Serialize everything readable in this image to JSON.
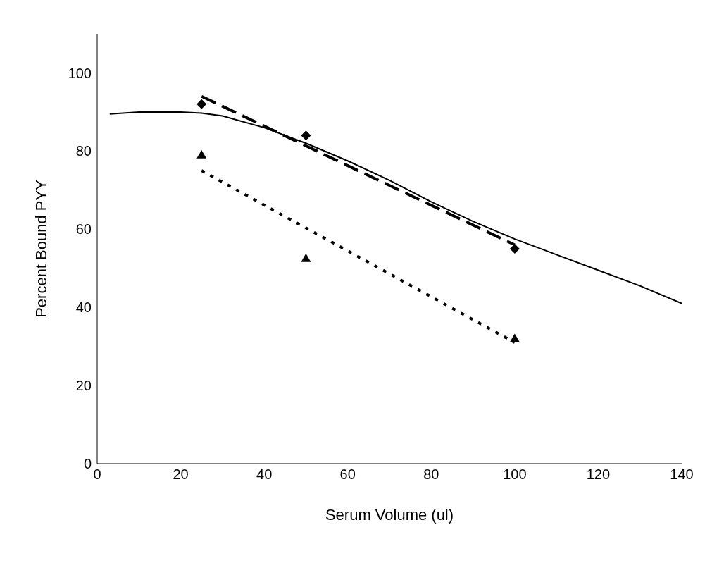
{
  "chart_data": {
    "type": "scatter",
    "xlabel": "Serum Volume (ul)",
    "ylabel": "Percent Bound PYY",
    "xlim": [
      0,
      140
    ],
    "xticks": [
      0,
      20,
      40,
      60,
      80,
      100,
      120,
      140
    ],
    "ylim": [
      0,
      110
    ],
    "yticks": [
      0,
      20,
      40,
      60,
      80,
      100
    ],
    "grid": false,
    "series": [
      {
        "type": "line",
        "color": "#000000",
        "line_style": "solid",
        "marker": "none",
        "x": [
          3,
          10,
          20,
          25,
          30,
          40,
          50,
          60,
          70,
          80,
          90,
          100,
          110,
          120,
          130,
          140
        ],
        "values": [
          89.5,
          90,
          90,
          89.7,
          89,
          86,
          82,
          77.5,
          72.5,
          67,
          62,
          57.5,
          53.5,
          49.5,
          45.5,
          41
        ]
      },
      {
        "type": "line",
        "color": "#000000",
        "line_style": "dashed",
        "marker": "none",
        "x": [
          25,
          100
        ],
        "values": [
          94,
          56
        ]
      },
      {
        "type": "line",
        "color": "#000000",
        "line_style": "dotted",
        "marker": "none",
        "x": [
          25,
          100
        ],
        "values": [
          75,
          31
        ]
      },
      {
        "color": "#000000",
        "marker": "diamond",
        "x": [
          25,
          50,
          100
        ],
        "values": [
          92,
          84,
          55
        ]
      },
      {
        "color": "#000000",
        "marker": "triangle",
        "x": [
          25,
          50,
          100
        ],
        "values": [
          79,
          52.5,
          32
        ]
      }
    ]
  }
}
